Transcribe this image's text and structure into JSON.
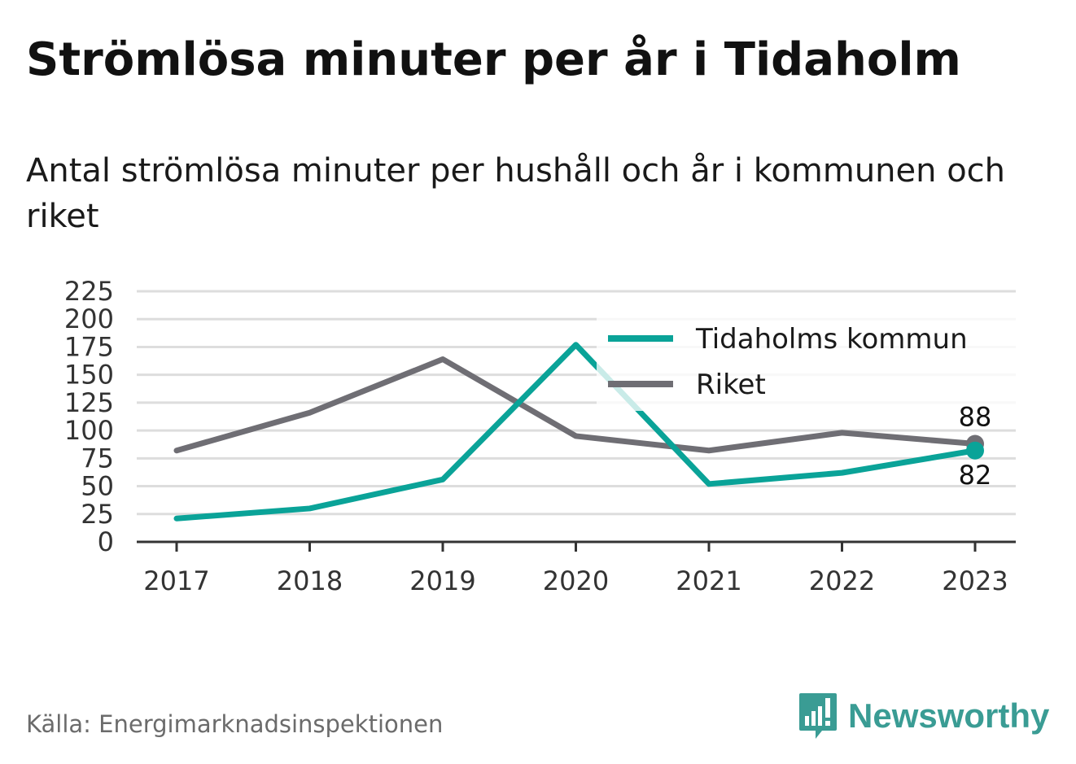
{
  "header": {
    "title": "Strömlösa minuter per år i Tidaholm",
    "subtitle": "Antal strömlösa minuter per hushåll och år i kommunen och riket"
  },
  "footer": {
    "source": "Källa: Energimarknadsinspektionen",
    "brand": "Newsworthy"
  },
  "colors": {
    "tidaholm": "#0aa398",
    "riket": "#6f6e74",
    "grid": "#dddddd",
    "axis": "#333333",
    "brand": "#3a9c94"
  },
  "chart_data": {
    "type": "line",
    "title": "Strömlösa minuter per år i Tidaholm",
    "subtitle": "Antal strömlösa minuter per hushåll och år i kommunen och riket",
    "categories": [
      "2017",
      "2018",
      "2019",
      "2020",
      "2021",
      "2022",
      "2023"
    ],
    "series": [
      {
        "name": "Tidaholms kommun",
        "color": "#0aa398",
        "values": [
          21,
          30,
          56,
          177,
          52,
          62,
          82
        ]
      },
      {
        "name": "Riket",
        "color": "#6f6e74",
        "values": [
          82,
          116,
          164,
          95,
          82,
          98,
          88
        ]
      }
    ],
    "last_value_labels": [
      {
        "series": "Tidaholms kommun",
        "text": "82"
      },
      {
        "series": "Riket",
        "text": "88"
      }
    ],
    "ylim": [
      0,
      225
    ],
    "yticks": [
      0,
      25,
      50,
      75,
      100,
      125,
      150,
      175,
      200,
      225
    ],
    "grid": true,
    "legend": "top-right",
    "xlabel": "",
    "ylabel": ""
  }
}
